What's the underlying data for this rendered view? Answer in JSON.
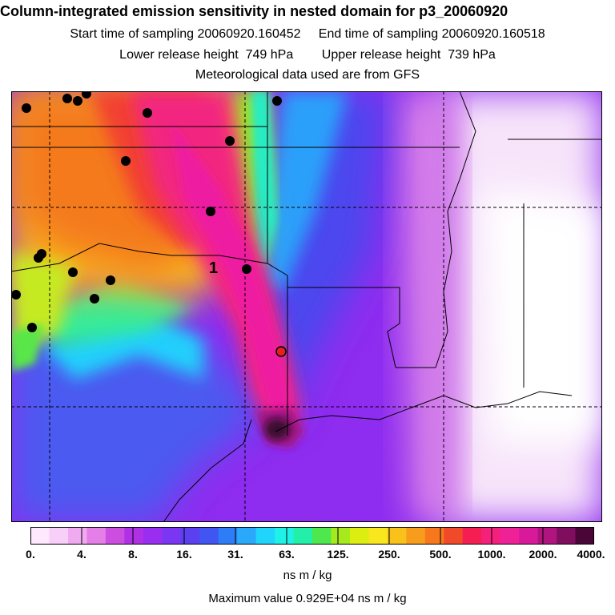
{
  "header": {
    "title": "Column-integrated emission sensitivity in nested domain for p3_20060920",
    "line2": "Start time of sampling 20060920.160452     End time of sampling 20060920.160518",
    "line3": "Lower release height  749 hPa        Upper release height  739 hPa",
    "line4": "Meteorological data used are from GFS"
  },
  "map": {
    "label_1": "1",
    "receptor_color": "#e52020"
  },
  "colorbar": {
    "colors": [
      "#fde8fd",
      "#f8cff8",
      "#f0aaf0",
      "#e37fe7",
      "#cc4ee0",
      "#b030e6",
      "#9a2ef0",
      "#7a36f2",
      "#5a40f0",
      "#4055f2",
      "#2f7df6",
      "#2aa8fa",
      "#20d4fc",
      "#1ef2e6",
      "#22f0a8",
      "#4ee84e",
      "#a6ea1e",
      "#dcee10",
      "#f8e61e",
      "#f8c21a",
      "#f89c1c",
      "#f7781c",
      "#f04a2a",
      "#f41e52",
      "#f4207c",
      "#ee2296",
      "#d81a9a",
      "#b0147e",
      "#800e5e",
      "#4a0636"
    ],
    "ticks": [
      "0.",
      "4.",
      "8.",
      "16.",
      "31.",
      "63.",
      "125.",
      "250.",
      "500.",
      "1000.",
      "2000.",
      "4000."
    ],
    "units": "ns m / kg"
  },
  "footer": {
    "max_value": "Maximum value  0.929E+04 ns m / kg"
  }
}
